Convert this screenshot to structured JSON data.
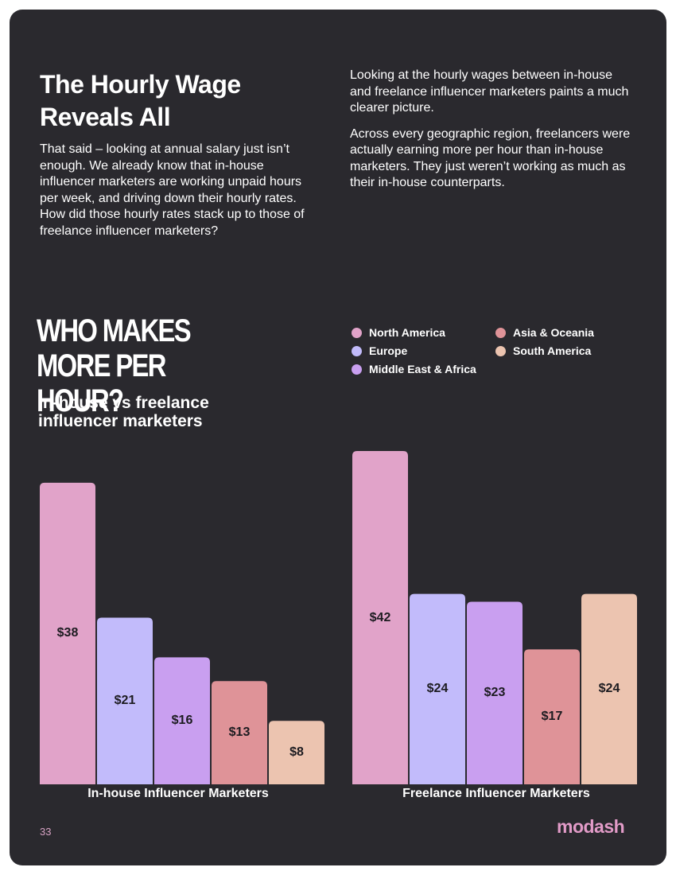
{
  "heading": "The Hourly Wage Reveals All",
  "intro_left": "That said – looking at annual salary just isn’t enough. We already know that in-house influencer marketers are working unpaid hours per week, and driving down their hourly rates. How did those hourly rates stack up to those of freelance influencer marketers?",
  "intro_right": {
    "paragraph_1": "Looking at the hourly wages between in-house and freelance influencer marketers paints a much clearer picture.",
    "paragraph_2": "Across every geographic region, freelancers were actually earning more per hour than in-house marketers. They just weren’t working as much as their in-house counterparts."
  },
  "chart_heading": "WHO MAKES MORE PER HOUR?",
  "chart_subtitle": "In-house vs freelance influencer marketers",
  "chart_data": {
    "type": "bar",
    "title": "WHO MAKES MORE PER HOUR?",
    "subtitle": "In-house vs freelance influencer marketers",
    "ylim": [
      0,
      42
    ],
    "legend_position": "top-right",
    "value_prefix": "$",
    "regions": [
      "North America",
      "Europe",
      "Middle East & Africa",
      "Asia & Oceania",
      "South America"
    ],
    "colors": [
      "#e1a3c9",
      "#c2bbfb",
      "#c99ff0",
      "#df9398",
      "#ecc4b0"
    ],
    "groups": [
      {
        "label": "In-house Influencer Marketers",
        "regions": [
          "North America",
          "Europe",
          "Middle East & Africa",
          "Asia & Oceania",
          "South America"
        ],
        "values": [
          38,
          21,
          16,
          13,
          8
        ]
      },
      {
        "label": "Freelance Influencer Marketers",
        "regions": [
          "North America",
          "Europe",
          "Middle East & Africa",
          "Asia & Oceania",
          "South America"
        ],
        "values": [
          42,
          24,
          23,
          17,
          24
        ]
      }
    ]
  },
  "legend": [
    {
      "label": "North America",
      "color": "#e1a3c9"
    },
    {
      "label": "Europe",
      "color": "#c2bbfb"
    },
    {
      "label": "Middle East & Africa",
      "color": "#c99ff0"
    },
    {
      "label": "Asia & Oceania",
      "color": "#df9398"
    },
    {
      "label": "South America",
      "color": "#ecc4b0"
    }
  ],
  "footer": {
    "page_number": "33",
    "brand": "modash"
  }
}
